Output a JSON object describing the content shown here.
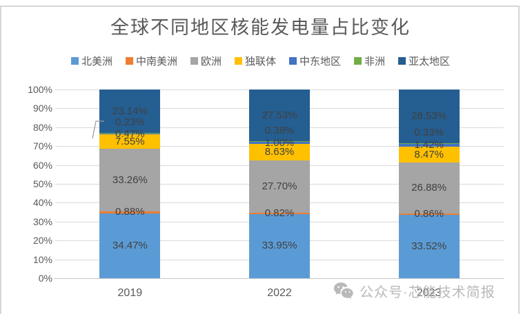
{
  "page": {
    "watermark_text": "公众号·芯能技术简报",
    "watermark_icon": "wechat-icon"
  },
  "chart_data": {
    "type": "bar",
    "stacked": true,
    "title": "全球不同地区核能发电量占比变化",
    "categories": [
      "2019",
      "2022",
      "2023"
    ],
    "series": [
      {
        "name": "北美洲",
        "color": "#5B9BD5",
        "values": [
          34.47,
          33.95,
          33.52
        ]
      },
      {
        "name": "中南美洲",
        "color": "#ED7D31",
        "values": [
          0.88,
          0.82,
          0.86
        ]
      },
      {
        "name": "欧洲",
        "color": "#A5A5A5",
        "values": [
          33.26,
          27.7,
          26.88
        ]
      },
      {
        "name": "独联体",
        "color": "#FFC000",
        "values": [
          7.55,
          8.63,
          8.47
        ]
      },
      {
        "name": "中东地区",
        "color": "#4472C4",
        "values": [
          0.47,
          1.0,
          1.42
        ]
      },
      {
        "name": "非洲",
        "color": "#70AD47",
        "values": [
          0.23,
          0.38,
          0.33
        ]
      },
      {
        "name": "亚太地区",
        "color": "#255E91",
        "values": [
          23.14,
          27.53,
          28.53
        ]
      }
    ],
    "xlabel": "",
    "ylabel": "",
    "ylim": [
      0,
      100
    ],
    "ytick_step": 10,
    "ytick_labels": [
      "0%",
      "10%",
      "20%",
      "30%",
      "40%",
      "50%",
      "60%",
      "70%",
      "80%",
      "90%",
      "100%"
    ],
    "grid": true,
    "legend_position": "top",
    "data_label_format": "two-decimal-percent",
    "annotations": [
      {
        "target_category": "2019",
        "target_series": "非洲",
        "type": "leader-line"
      }
    ]
  }
}
